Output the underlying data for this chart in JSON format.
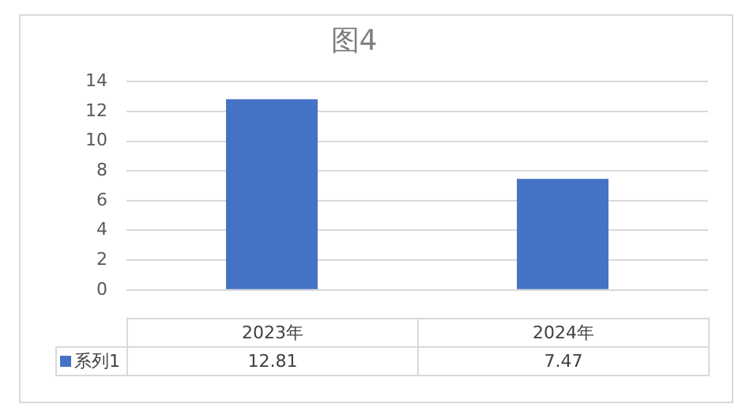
{
  "chart_data": {
    "type": "bar",
    "title": "图4",
    "categories": [
      "2023年",
      "2024年"
    ],
    "series": [
      {
        "name": "系列1",
        "color": "#4472c4",
        "values": [
          12.81,
          7.47
        ]
      }
    ],
    "ylim": [
      0,
      14
    ],
    "yticks": [
      0,
      2,
      4,
      6,
      8,
      10,
      12,
      14
    ],
    "grid": "y",
    "legend": "bottom",
    "data_labels": true
  }
}
